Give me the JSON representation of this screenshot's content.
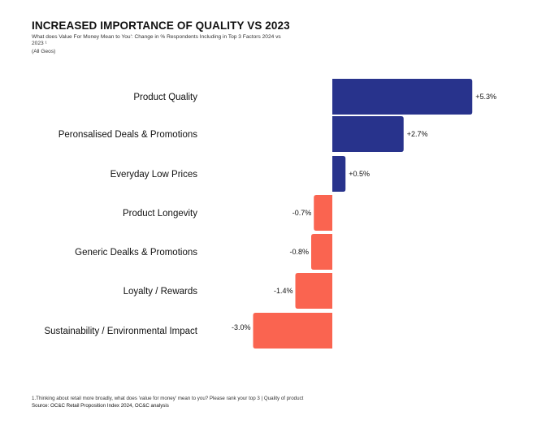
{
  "header": {
    "title": "INCREASED IMPORTANCE OF QUALITY VS 2023",
    "subtitle": "What does Value For Money Mean to You': Change in % Respondents Including in Top 3 Factors 2024 vs 2023 ¹",
    "geo": "(All Geos)"
  },
  "footer": {
    "footnote": "1.Thinking about retail more broadly, what does 'value for money' mean to you? Please rank your top 3 | Quality of product",
    "source": "Source: OC&C Retail Proposition Index 2024, OC&C analysis"
  },
  "colors": {
    "positive": "#28338c",
    "negative": "#fa6450",
    "axis": "#bbbbbb"
  },
  "chart_data": {
    "type": "bar",
    "orientation": "horizontal",
    "title": "INCREASED IMPORTANCE OF QUALITY VS 2023",
    "xlabel": "",
    "ylabel": "",
    "xlim": [
      -3.0,
      5.3
    ],
    "categories": [
      "Product Quality",
      "Peronsalised Deals & Promotions",
      "Everyday Low Prices",
      "Product Longevity",
      "Generic Dealks & Promotions",
      "Loyalty / Rewards",
      "Sustainability / Environmental Impact"
    ],
    "values": [
      5.3,
      2.7,
      0.5,
      -0.7,
      -0.8,
      -1.4,
      -3.0
    ],
    "labels": [
      "+5.3%",
      "+2.7%",
      "+0.5%",
      "-0.7%",
      "-0.8%",
      "-1.4%",
      "-3.0%"
    ]
  }
}
